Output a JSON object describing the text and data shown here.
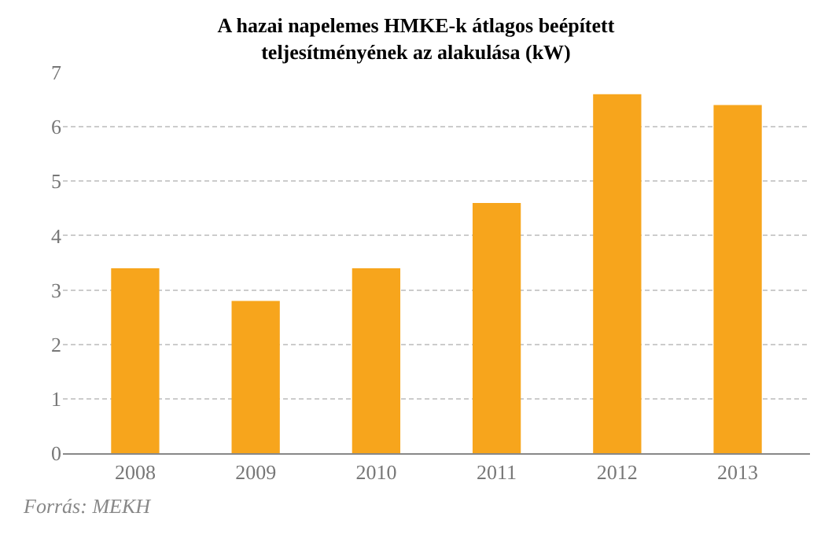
{
  "chart_data": {
    "type": "bar",
    "title": "A hazai napelemes HMKE-k átlagos beépített\nteljesítményének az alakulása (kW)",
    "categories": [
      "2008",
      "2009",
      "2010",
      "2011",
      "2012",
      "2013"
    ],
    "values": [
      3.4,
      2.8,
      3.4,
      4.6,
      6.6,
      6.4
    ],
    "color": "#f7a51c",
    "ylim": [
      0,
      7
    ],
    "yticks": [
      0,
      1,
      2,
      3,
      4,
      5,
      6,
      7
    ],
    "grid": "y",
    "annotations": [
      "Forrás: MEKH"
    ]
  }
}
